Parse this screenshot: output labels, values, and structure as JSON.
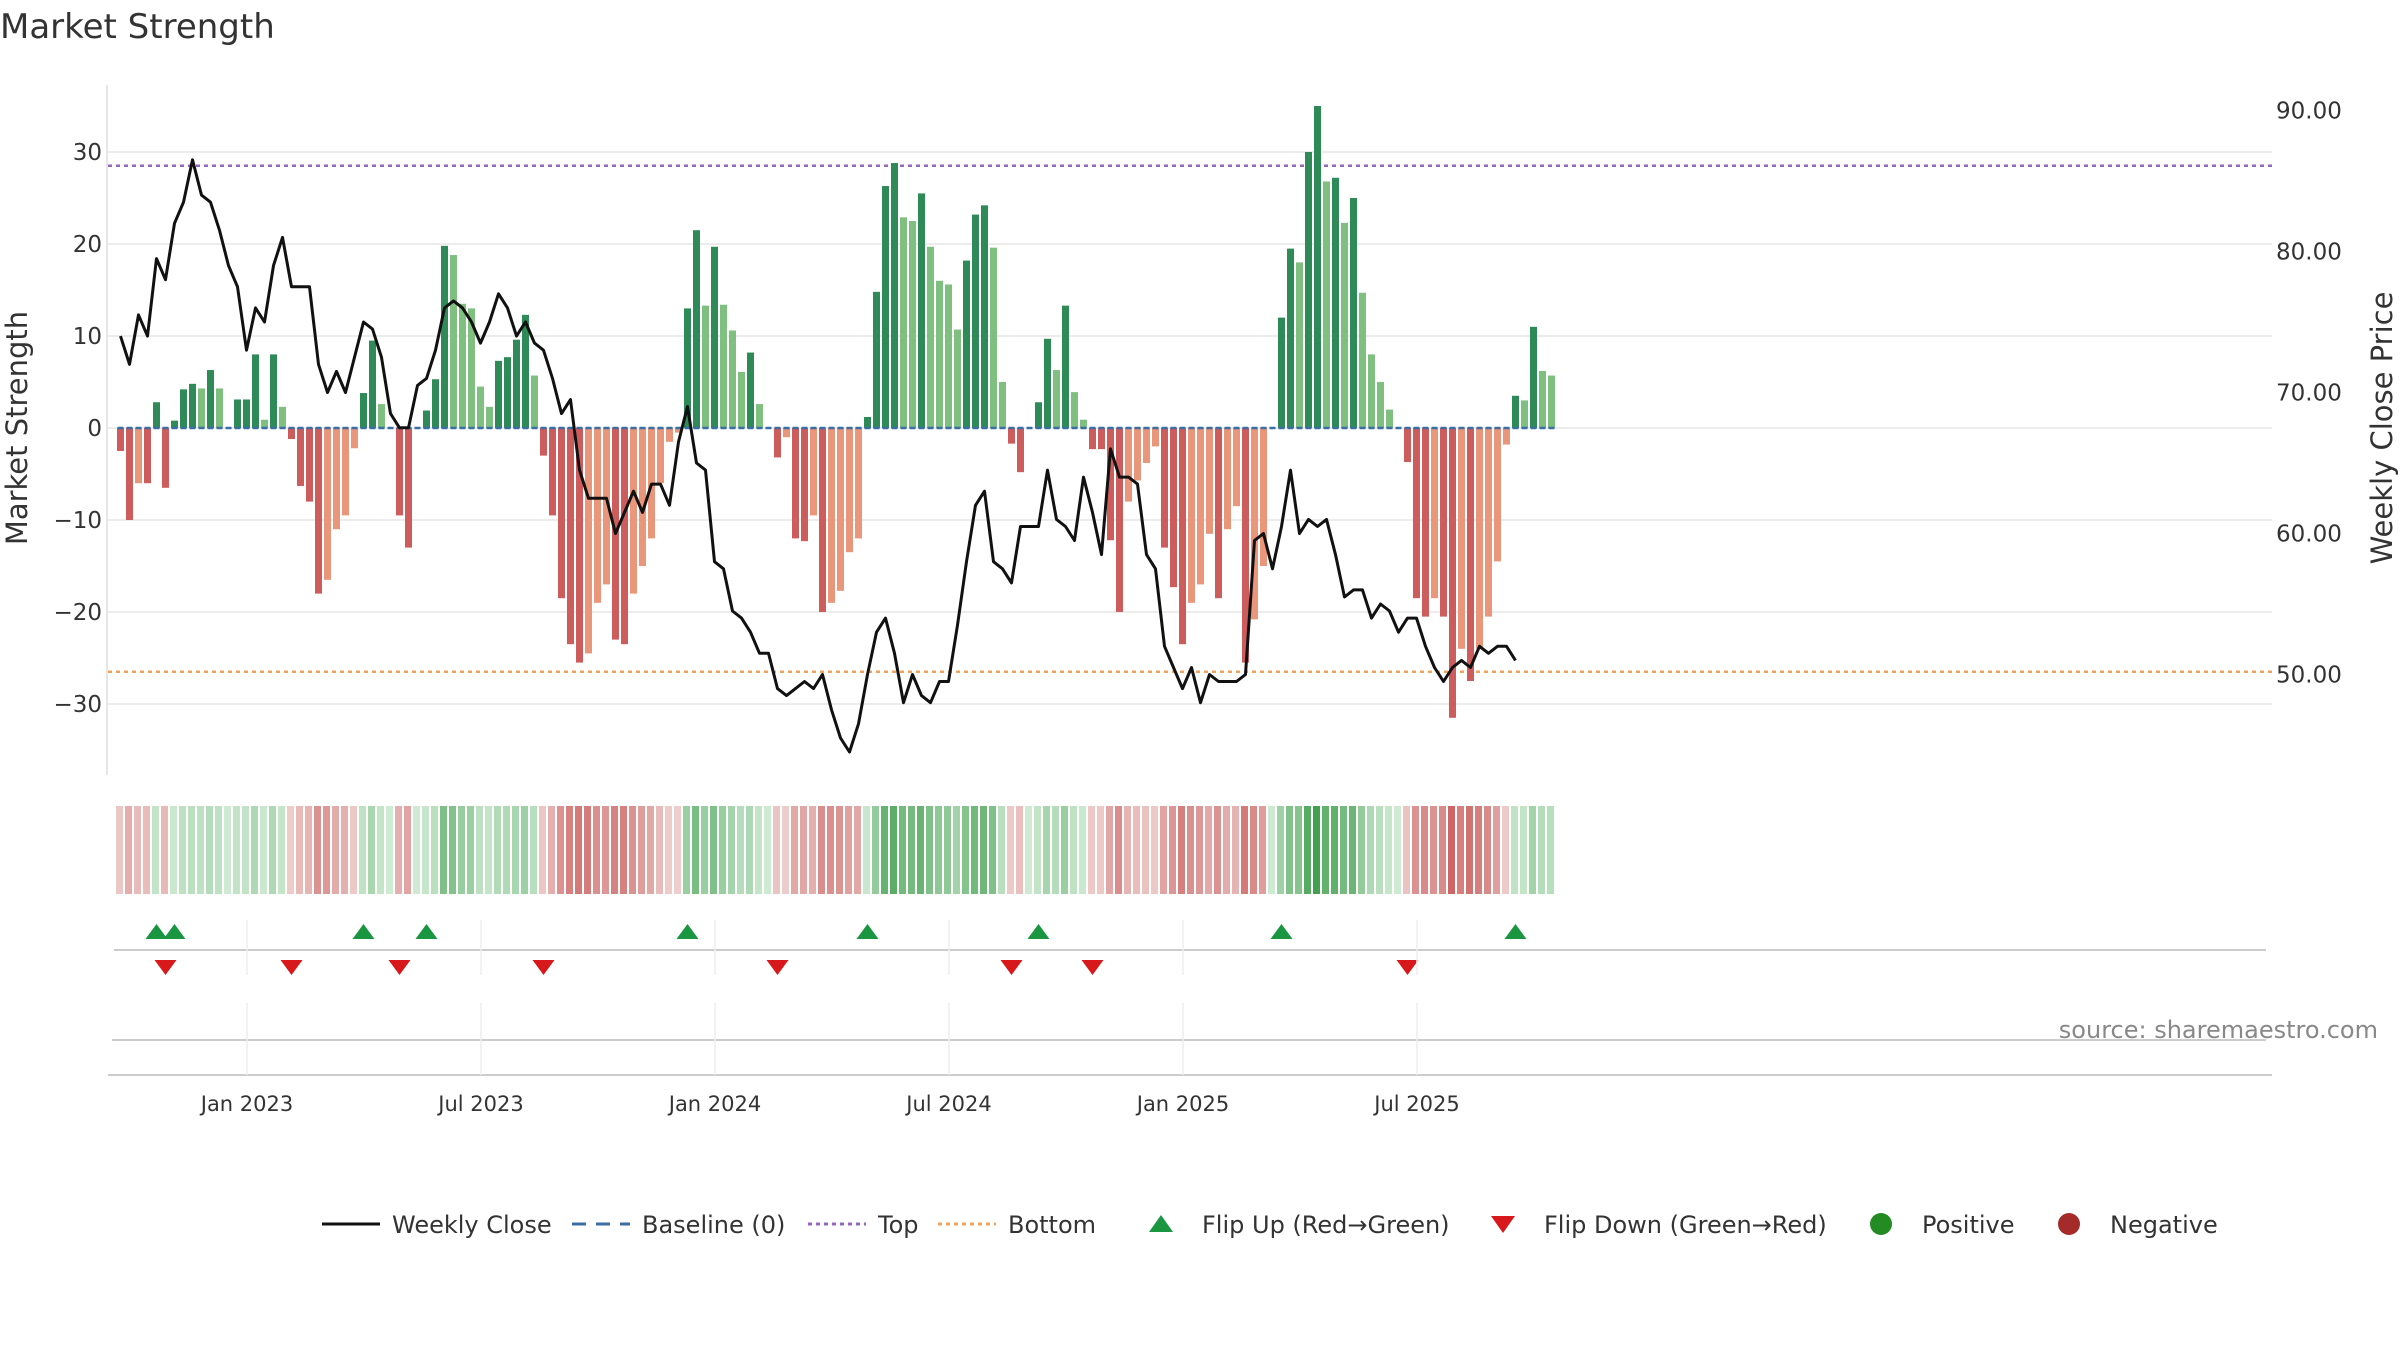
{
  "chart_data": {
    "type": "bar+line",
    "title": "Market Strength",
    "ylabel_left": "Market Strength",
    "ylabel_right": "Weekly Close Price",
    "ylim_left": [
      -38,
      38
    ],
    "ylim_right": [
      43.5,
      92.5
    ],
    "yticks_left": [
      {
        "value": 30,
        "label": "30"
      },
      {
        "value": 20,
        "label": "20"
      },
      {
        "value": 10,
        "label": "10"
      },
      {
        "value": 0,
        "label": "0"
      },
      {
        "value": -10,
        "label": "−10"
      },
      {
        "value": -20,
        "label": "−20"
      },
      {
        "value": -30,
        "label": "−30"
      }
    ],
    "yticks_right": [
      {
        "value": 90,
        "label": "90.00"
      },
      {
        "value": 80,
        "label": "80.00"
      },
      {
        "value": 70,
        "label": "70.00"
      },
      {
        "value": 60,
        "label": "60.00"
      },
      {
        "value": 50,
        "label": "50.00"
      }
    ],
    "top_level": 28.5,
    "bottom_level": -26.5,
    "start_week": 0,
    "x_ticks": [
      {
        "week": 14,
        "label": "Jan 2023"
      },
      {
        "week": 40,
        "label": "Jul 2023"
      },
      {
        "week": 66,
        "label": "Jan 2024"
      },
      {
        "week": 92,
        "label": "Jul 2024"
      },
      {
        "week": 118,
        "label": "Jan 2025"
      },
      {
        "week": 144,
        "label": "Jul 2025"
      }
    ],
    "strength": [
      -2.5,
      -10,
      -6,
      -6,
      2.8,
      -6.5,
      0.8,
      4.2,
      4.8,
      4.3,
      6.3,
      4.3,
      0,
      3.1,
      3.1,
      8,
      0.9,
      8,
      2.3,
      -1.2,
      -6.3,
      -8,
      -18,
      -16.5,
      -11,
      -9.5,
      -2.2,
      3.8,
      9.5,
      2.6,
      0,
      -9.5,
      -13,
      0,
      1.9,
      5.3,
      19.8,
      18.8,
      13.5,
      13,
      4.5,
      2.3,
      7.3,
      7.7,
      9.6,
      12.3,
      5.7,
      -3,
      -9.5,
      -18.5,
      -23.5,
      -25.5,
      -24.5,
      -19,
      -17,
      -23,
      -23.5,
      -18,
      -15,
      -12,
      -6,
      -1.5,
      -0.5,
      13,
      21.5,
      13.3,
      19.7,
      13.4,
      10.6,
      6.1,
      8.2,
      2.6,
      0,
      -3.2,
      -1,
      -12,
      -12.3,
      -9.5,
      -20,
      -19,
      -17.7,
      -13.5,
      -12,
      1.2,
      14.8,
      26.3,
      28.8,
      22.9,
      22.5,
      25.5,
      19.7,
      16,
      15.6,
      10.7,
      18.2,
      23.2,
      24.2,
      19.6,
      5,
      -1.7,
      -4.8,
      0,
      2.8,
      9.7,
      6.3,
      13.3,
      3.9,
      0.9,
      -2.3,
      -2.3,
      -12.2,
      -20,
      -8,
      -5.7,
      -3.8,
      -2,
      -13,
      -17.3,
      -23.5,
      -19,
      -17,
      -11.5,
      -18.5,
      -11,
      -8.5,
      -25.5,
      -20.8,
      -15,
      0,
      12,
      19.5,
      18,
      30,
      35,
      26.8,
      27.2,
      22.3,
      25,
      14.7,
      8,
      5,
      2,
      0,
      -3.7,
      -18.5,
      -20.5,
      -18.5,
      -20.5,
      -31.5,
      -24,
      -27.5,
      -24,
      -20.5,
      -14.5,
      -1.8,
      3.5,
      3,
      11,
      6.2,
      5.7
    ],
    "price": [
      74,
      72,
      75.5,
      74,
      79.5,
      78,
      82,
      83.5,
      86.5,
      84,
      83.5,
      81.5,
      79,
      77.5,
      73,
      76,
      75,
      79,
      81,
      77.5,
      77.5,
      77.5,
      72,
      70,
      71.5,
      70,
      72.5,
      75,
      74.5,
      72.5,
      68.5,
      67.5,
      67.5,
      70.5,
      71,
      73,
      76,
      76.5,
      76,
      75,
      73.5,
      75,
      77,
      76,
      74,
      75,
      73.5,
      73,
      71,
      68.5,
      69.5,
      64.5,
      62.5,
      62.5,
      62.5,
      60,
      61.5,
      63,
      61.5,
      63.5,
      63.5,
      62,
      66.5,
      69,
      65,
      64.5,
      58,
      57.5,
      54.5,
      54,
      53,
      51.5,
      51.5,
      49,
      48.5,
      49,
      49.5,
      49,
      50,
      47.5,
      45.5,
      44.5,
      46.5,
      50,
      53,
      54,
      51.5,
      48,
      50,
      48.5,
      48,
      49.5,
      49.5,
      53.5,
      58,
      62,
      63,
      58,
      57.5,
      56.5,
      60.5,
      60.5,
      60.5,
      64.5,
      61,
      60.5,
      59.5,
      64,
      61.5,
      58.5,
      66,
      64,
      64,
      63.5,
      58.5,
      57.5,
      52,
      50.5,
      49,
      50.5,
      48,
      50,
      49.5,
      49.5,
      49.5,
      50,
      59.5,
      60,
      57.5,
      60.5,
      64.5,
      60,
      61,
      60.5,
      61,
      58.5,
      55.5,
      56,
      56,
      54,
      55,
      54.5,
      53,
      54,
      54,
      52,
      50.5,
      49.5,
      50.5,
      51,
      50.5,
      52,
      51.5,
      52,
      52,
      51
    ]
  },
  "source": "source: sharemaestro.com",
  "legend": [
    {
      "label": "Weekly Close",
      "kind": "line",
      "color": "#111111"
    },
    {
      "label": "Baseline (0)",
      "kind": "dash",
      "color": "#3a6ea5"
    },
    {
      "label": "Top",
      "kind": "dot",
      "color": "#9467bd"
    },
    {
      "label": "Bottom",
      "kind": "dot",
      "color": "#f0a35e"
    },
    {
      "label": "Flip Up (Red→Green)",
      "kind": "up",
      "color": "#1a9641"
    },
    {
      "label": "Flip Down (Green→Red)",
      "kind": "down",
      "color": "#d7191c"
    },
    {
      "label": "Positive",
      "kind": "circle",
      "color": "#228b22"
    },
    {
      "label": "Negative",
      "kind": "circle",
      "color": "#a52a2a"
    }
  ],
  "colors": {
    "pos_strong": "#2e8b57",
    "pos_light": "#7fbf7f",
    "neg_strong": "#cd5c5c",
    "neg_light": "#e9967a",
    "price_line": "#111111",
    "grid": "#e6e6e6"
  }
}
